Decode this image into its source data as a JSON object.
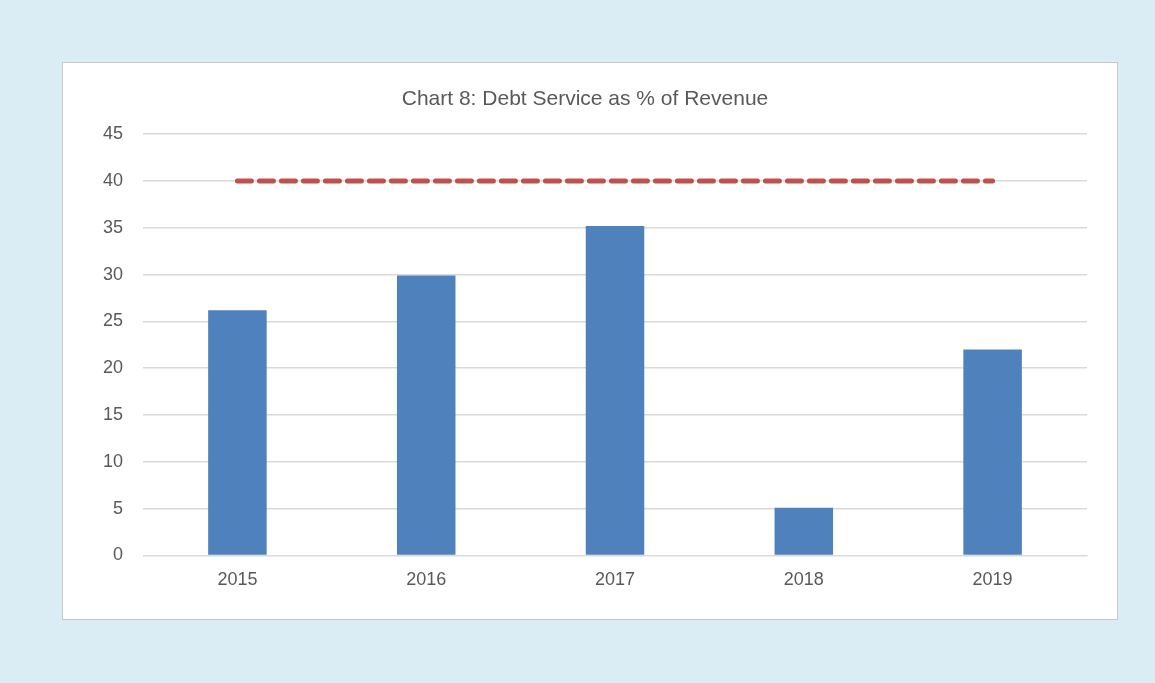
{
  "chart_data": {
    "type": "bar",
    "title": "Chart 8: Debt Service as % of Revenue",
    "categories": [
      "2015",
      "2016",
      "2017",
      "2018",
      "2019"
    ],
    "series": [
      {
        "color": "#4f81bd",
        "values": [
          26.2,
          29.9,
          35.2,
          5.1,
          22.0
        ]
      },
      {
        "type": "line",
        "color": "#c0504d",
        "values": [
          40,
          40,
          40,
          40,
          40
        ],
        "line_style": "dashed",
        "marker": "none"
      }
    ],
    "ylim": [
      0,
      45
    ],
    "yticks": [
      0,
      5,
      10,
      15,
      20,
      25,
      30,
      35,
      40,
      45
    ],
    "grid": "y",
    "legend": false
  }
}
